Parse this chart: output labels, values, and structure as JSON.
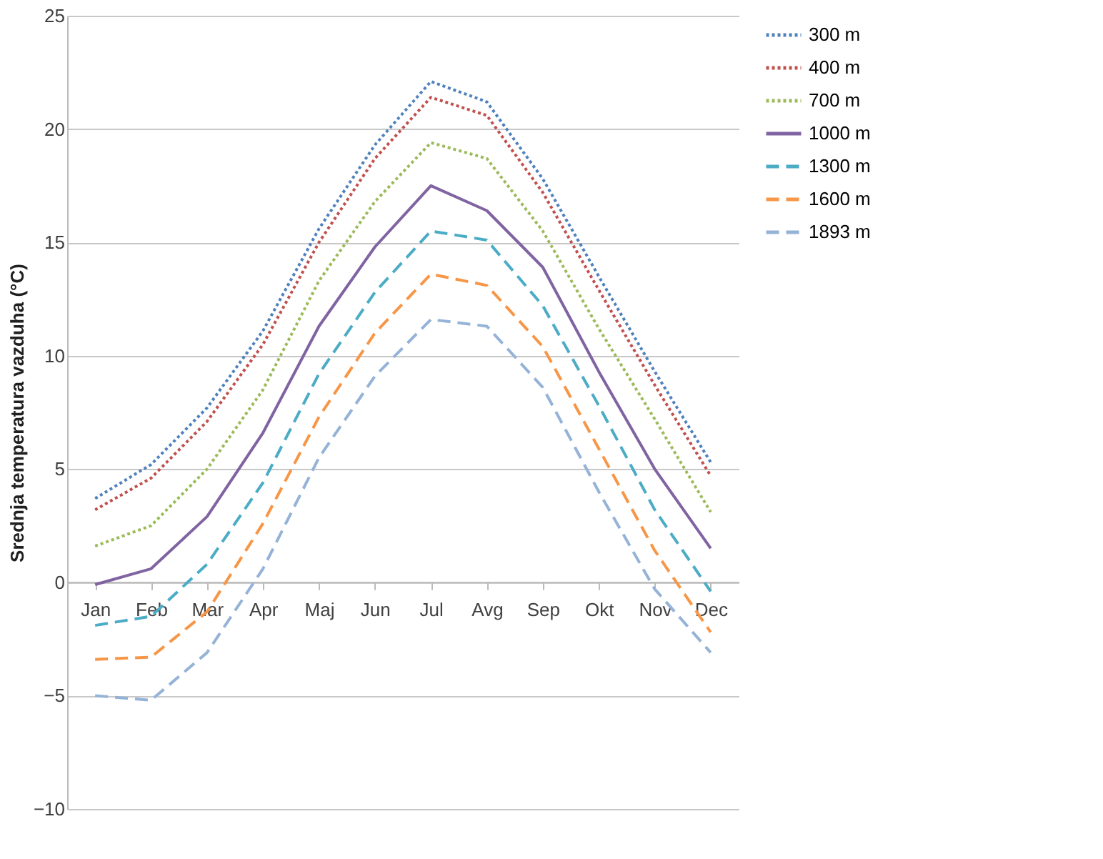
{
  "chart_data": {
    "type": "line",
    "ylabel": "Srednja temperatura vazduha (°C)",
    "categories": [
      "Jan",
      "Feb",
      "Mar",
      "Apr",
      "Maj",
      "Jun",
      "Jul",
      "Avg",
      "Sep",
      "Okt",
      "Nov",
      "Dec"
    ],
    "series": [
      {
        "name": "300 m",
        "color": "#4f81bd",
        "line_style": "dotted",
        "values": [
          3.7,
          5.2,
          7.7,
          11.1,
          15.6,
          19.3,
          22.1,
          21.2,
          17.8,
          13.5,
          9.3,
          5.3
        ]
      },
      {
        "name": "400 m",
        "color": "#c0504d",
        "line_style": "dotted",
        "values": [
          3.2,
          4.6,
          7.1,
          10.5,
          15.0,
          18.7,
          21.4,
          20.6,
          17.2,
          12.9,
          8.7,
          4.7
        ]
      },
      {
        "name": "700 m",
        "color": "#9bbb59",
        "line_style": "dotted",
        "values": [
          1.6,
          2.5,
          5.0,
          8.5,
          13.3,
          16.8,
          19.4,
          18.7,
          15.5,
          11.2,
          7.2,
          3.1
        ]
      },
      {
        "name": "1000 m",
        "color": "#8064a2",
        "line_style": "solid",
        "values": [
          -0.1,
          0.6,
          2.9,
          6.6,
          11.3,
          14.8,
          17.5,
          16.4,
          13.9,
          9.3,
          5.0,
          1.5
        ]
      },
      {
        "name": "1300 m",
        "color": "#4bacc6",
        "line_style": "dashed",
        "values": [
          -1.9,
          -1.5,
          0.8,
          4.4,
          9.2,
          12.8,
          15.5,
          15.1,
          12.2,
          7.8,
          3.2,
          -0.4
        ]
      },
      {
        "name": "1600 m",
        "color": "#f79646",
        "line_style": "dashed",
        "values": [
          -3.4,
          -3.3,
          -1.3,
          2.6,
          7.3,
          11.0,
          13.6,
          13.1,
          10.4,
          5.9,
          1.4,
          -2.2
        ]
      },
      {
        "name": "1893 m",
        "color": "#95b3d7",
        "line_style": "dashed",
        "values": [
          -5.0,
          -5.2,
          -3.1,
          0.6,
          5.5,
          9.1,
          11.6,
          11.3,
          8.6,
          4.0,
          -0.3,
          -3.1
        ]
      }
    ],
    "ylim": [
      -10,
      25
    ],
    "yticks": [
      -10,
      -5,
      0,
      5,
      10,
      15,
      20,
      25
    ],
    "grid": "y",
    "legend": "right",
    "marker": "none"
  }
}
